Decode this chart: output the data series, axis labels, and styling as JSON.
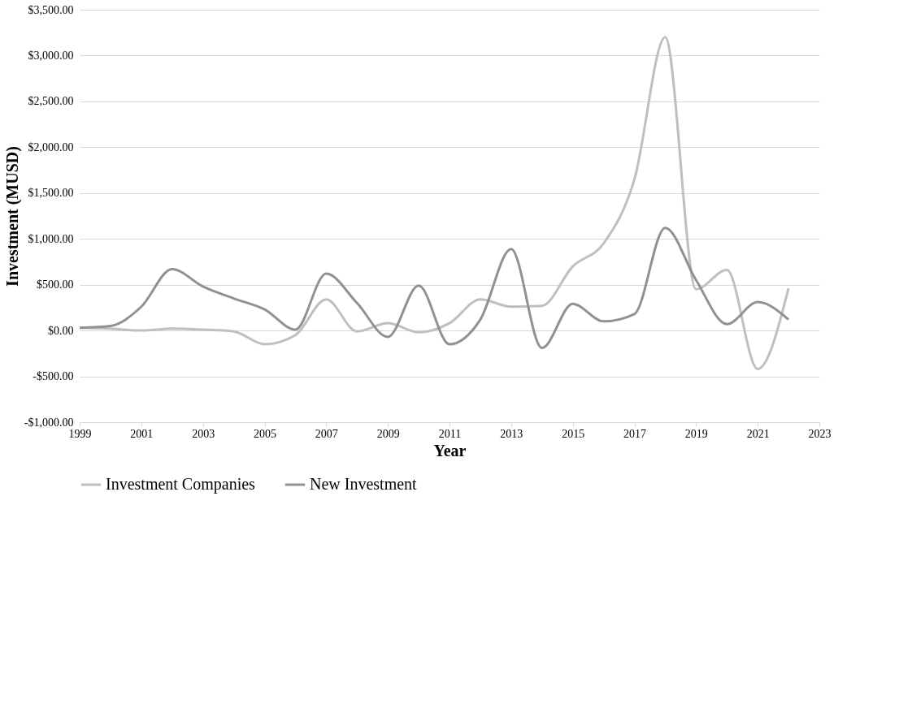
{
  "chart_data": {
    "type": "line",
    "xlabel": "Year",
    "ylabel": "Investment (MUSD)",
    "x": [
      1999,
      2000,
      2001,
      2002,
      2003,
      2004,
      2005,
      2006,
      2007,
      2008,
      2009,
      2010,
      2011,
      2012,
      2013,
      2014,
      2015,
      2016,
      2017,
      2018,
      2019,
      2020,
      2021,
      2022
    ],
    "series": [
      {
        "name": "Investment Companies",
        "color": "#bfbfbf",
        "values": [
          30,
          20,
          0,
          20,
          10,
          -10,
          -150,
          -50,
          340,
          -10,
          80,
          -20,
          80,
          340,
          260,
          270,
          700,
          950,
          1650,
          3200,
          450,
          660,
          -420,
          460
        ]
      },
      {
        "name": "New Investment",
        "color": "#919191",
        "values": [
          30,
          50,
          260,
          670,
          480,
          350,
          230,
          10,
          620,
          300,
          -70,
          490,
          -150,
          120,
          890,
          -190,
          290,
          100,
          180,
          1120,
          550,
          70,
          310,
          120
        ]
      }
    ],
    "xlim": [
      1999,
      2023
    ],
    "xticks": [
      1999,
      2001,
      2003,
      2005,
      2007,
      2009,
      2011,
      2013,
      2015,
      2017,
      2019,
      2021,
      2023
    ],
    "ylim": [
      -1000,
      3500
    ],
    "yticks": [
      {
        "value": -1000,
        "label": "-$1,000.00"
      },
      {
        "value": -500,
        "label": "-$500.00"
      },
      {
        "value": 0,
        "label": "$0.00"
      },
      {
        "value": 500,
        "label": "$500.00"
      },
      {
        "value": 1000,
        "label": "$1,000.00"
      },
      {
        "value": 1500,
        "label": "$1,500.00"
      },
      {
        "value": 2000,
        "label": "$2,000.00"
      },
      {
        "value": 2500,
        "label": "$2,500.00"
      },
      {
        "value": 3000,
        "label": "$3,000.00"
      },
      {
        "value": 3500,
        "label": "$3,500.00"
      }
    ],
    "grid": "y",
    "legend": "bottom",
    "marker": "none",
    "line_style": "solid"
  }
}
